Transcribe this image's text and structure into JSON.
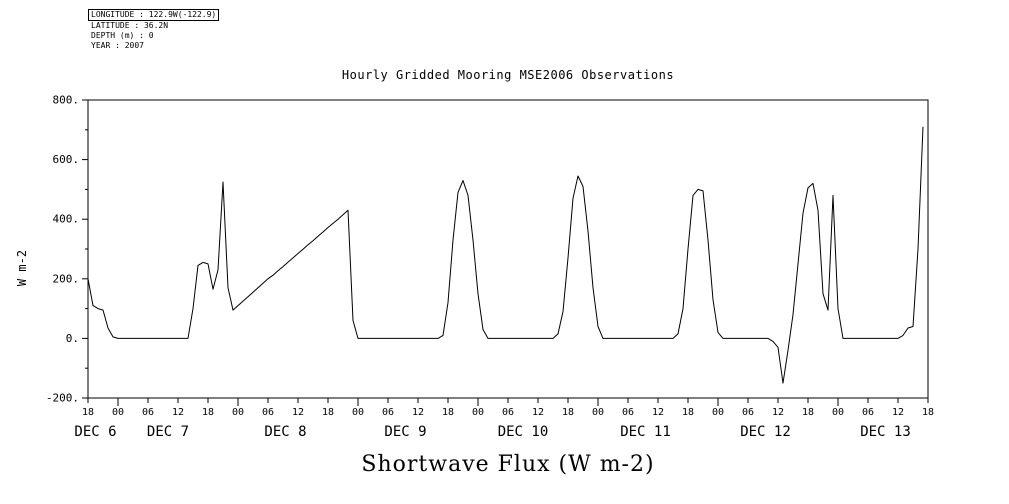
{
  "metadata": {
    "longitude": "LONGITUDE : 122.9W(-122.9)",
    "latitude": "LATITUDE : 36.2N",
    "depth": "DEPTH (m) : 0",
    "year": "YEAR : 2007"
  },
  "chart_data": {
    "type": "line",
    "title": "Hourly Gridded Mooring MSE2006 Observations",
    "xlabel": "Shortwave Flux (W m-2)",
    "ylabel": "W m-2",
    "ylim": [
      -200,
      800
    ],
    "yticks": [
      -200,
      0,
      200,
      400,
      600,
      800
    ],
    "ytick_labels": [
      "-200.",
      "0.",
      "200.",
      "400.",
      "600.",
      "800."
    ],
    "x_axis": {
      "start": "DEC 6 2007 18:00",
      "end": "DEC 13 2007 18:00",
      "hours_span": 168,
      "start_hour_of_day": 18,
      "hour_tick_interval": 6
    },
    "date_labels": [
      {
        "label": "DEC 6",
        "hour": 1.5
      },
      {
        "label": "DEC 7",
        "hour": 16
      },
      {
        "label": "DEC 8",
        "hour": 39.5
      },
      {
        "label": "DEC 9",
        "hour": 63.5
      },
      {
        "label": "DEC 10",
        "hour": 87
      },
      {
        "label": "DEC 11",
        "hour": 111.5
      },
      {
        "label": "DEC 12",
        "hour": 135.5
      },
      {
        "label": "DEC 13",
        "hour": 159.5
      }
    ],
    "grid": false,
    "legend": "none",
    "line_color": "#000000",
    "series": [
      {
        "name": "Shortwave Flux (W m-2)",
        "hour_step": 1,
        "values": [
          200,
          110,
          100,
          95,
          35,
          5,
          0,
          0,
          0,
          0,
          0,
          0,
          0,
          0,
          0,
          0,
          0,
          0,
          0,
          0,
          0,
          100,
          245,
          255,
          250,
          165,
          230,
          525,
          170,
          95,
          110,
          125,
          140,
          155,
          170,
          185,
          200,
          212,
          227,
          241,
          256,
          270,
          285,
          299,
          314,
          328,
          343,
          357,
          372,
          386,
          400,
          415,
          430,
          60,
          0,
          0,
          0,
          0,
          0,
          0,
          0,
          0,
          0,
          0,
          0,
          0,
          0,
          0,
          0,
          0,
          0,
          10,
          120,
          330,
          490,
          530,
          480,
          330,
          150,
          30,
          0,
          0,
          0,
          0,
          0,
          0,
          0,
          0,
          0,
          0,
          0,
          0,
          0,
          0,
          15,
          90,
          270,
          470,
          545,
          510,
          360,
          170,
          40,
          0,
          0,
          0,
          0,
          0,
          0,
          0,
          0,
          0,
          0,
          0,
          0,
          0,
          0,
          0,
          15,
          100,
          300,
          480,
          500,
          495,
          330,
          130,
          20,
          0,
          0,
          0,
          0,
          0,
          0,
          0,
          0,
          0,
          0,
          -10,
          -30,
          -150,
          -40,
          80,
          250,
          420,
          505,
          520,
          430,
          150,
          95,
          480,
          100,
          0,
          0,
          0,
          0,
          0,
          0,
          0,
          0,
          0,
          0,
          0,
          0,
          10,
          35,
          40,
          300,
          710
        ]
      }
    ]
  }
}
